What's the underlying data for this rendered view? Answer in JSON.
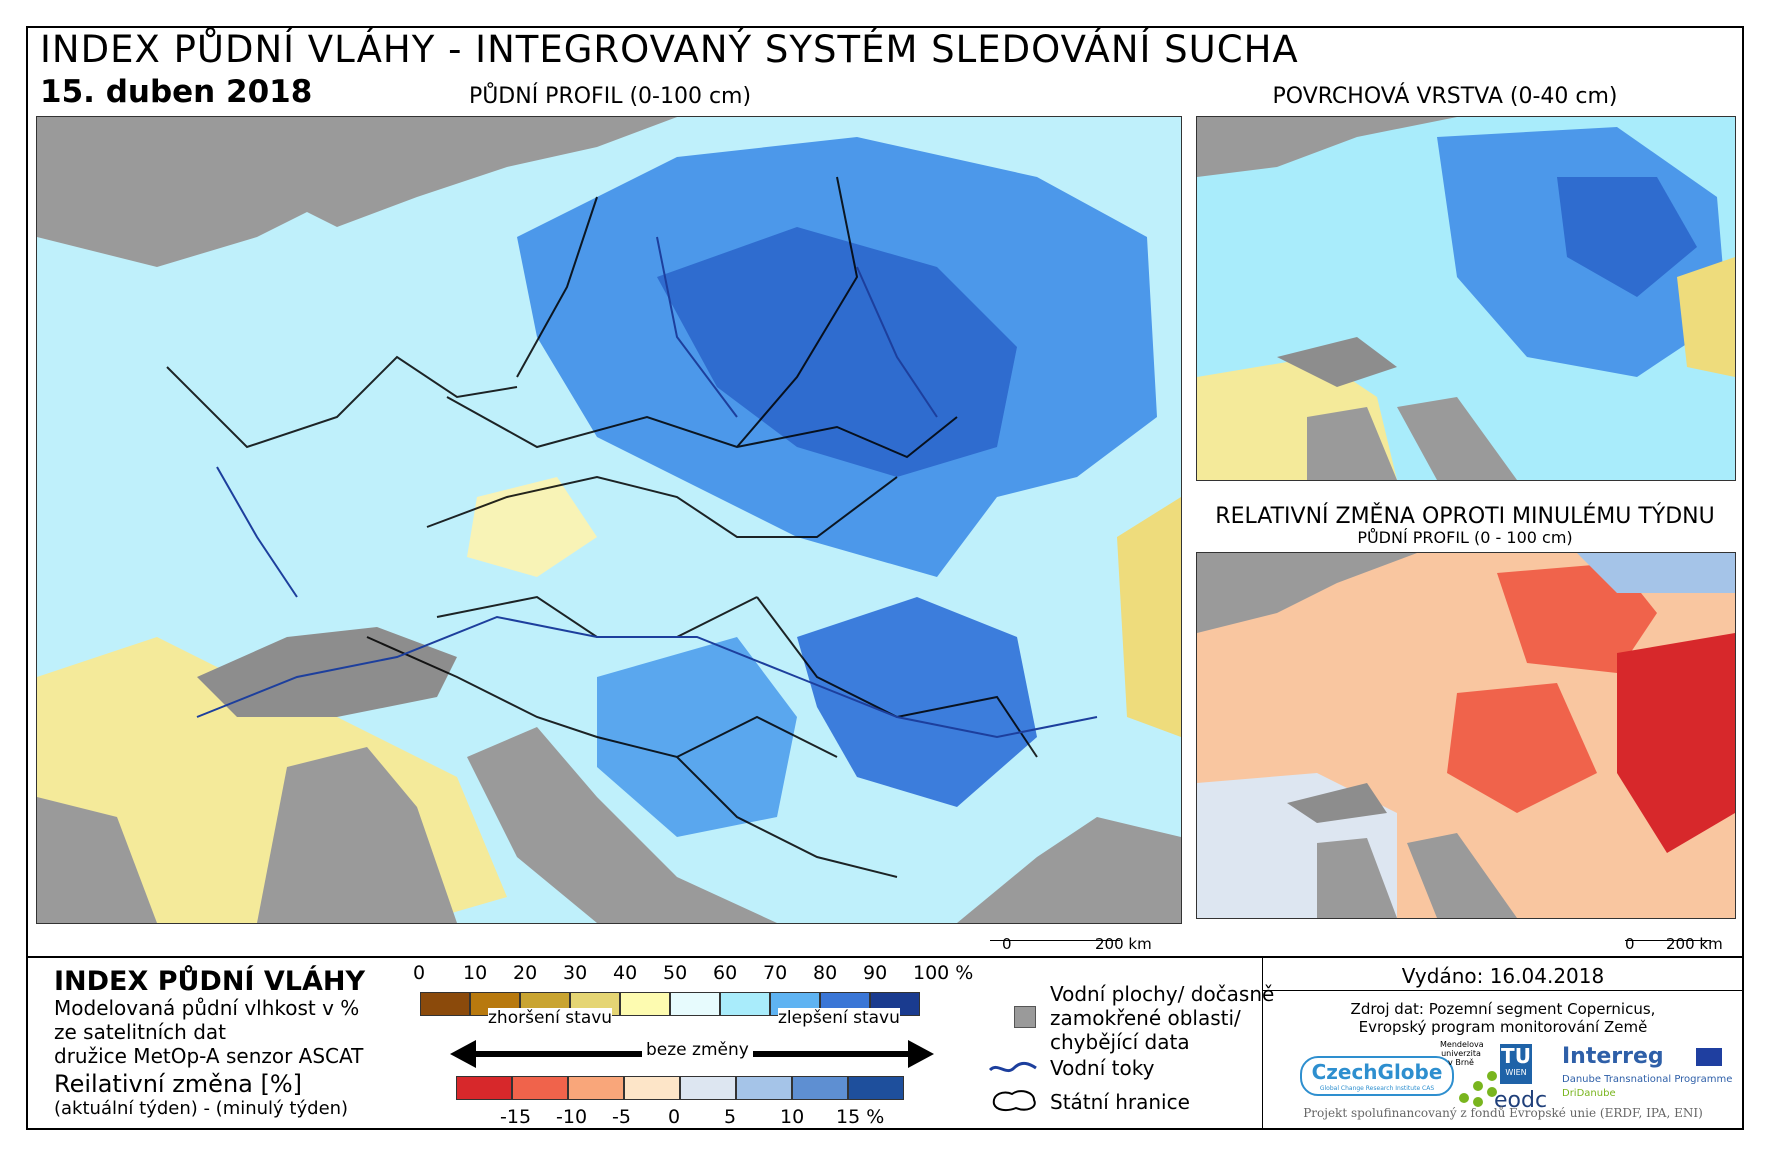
{
  "header": {
    "title": "INDEX PŮDNÍ VLÁHY - INTEGROVANÝ SYSTÉM SLEDOVÁNÍ SUCHA",
    "date": "15. duben 2018"
  },
  "maps": {
    "main_label": "PŮDNÍ PROFIL (0-100 cm)",
    "surface_label": "POVRCHOVÁ VRSTVA (0-40 cm)",
    "change_label": "RELATIVNÍ ZMĚNA OPROTI MINULÉMU TÝDNU",
    "change_sublabel": "PŮDNÍ PROFIL (0 - 100 cm)",
    "scale_zero": "0",
    "scale_km": "200 km"
  },
  "legend": {
    "heading": "INDEX PŮDNÍ VLÁHY",
    "desc_line1": "Modelovaná půdní vlhkost v %",
    "desc_line2": "ze satelitních dat",
    "desc_line3": "družice MetOp-A senzor ASCAT",
    "change_heading": "Reilativní změna [%]",
    "change_desc": "(aktuální týden) - (minulý týden)",
    "index_ticks": [
      "0",
      "10",
      "20",
      "30",
      "40",
      "50",
      "60",
      "70",
      "80",
      "90",
      "100 %"
    ],
    "index_colors": [
      "#8b4a0b",
      "#b8790e",
      "#c9a431",
      "#e5d574",
      "#fdfbb0",
      "#e7fbfd",
      "#a9ecfb",
      "#5fb3f2",
      "#3a76d6",
      "#1a3b8f"
    ],
    "worse": "zhoršení stavu",
    "nochange": "beze změny",
    "better": "zlepšení stavu",
    "change_ticks": [
      "-15",
      "-10",
      "-5",
      "0",
      "5",
      "10",
      "15 %"
    ],
    "change_colors": [
      "#d7282b",
      "#f0634b",
      "#f9a67a",
      "#fde5c8",
      "#dde6f1",
      "#a5c4e8",
      "#5e8fd2",
      "#1e4f9c"
    ],
    "water_bodies": "Vodní plochy/ dočasně",
    "water_bodies2": "zamokřené oblasti/",
    "water_bodies3": "chybějící data",
    "rivers": "Vodní toky",
    "borders": "Státní hranice"
  },
  "info": {
    "issued": "Vydáno: 16.04.2018",
    "source1": "Zdroj dat: Pozemní segment Copernicus,",
    "source2": "Evropský program monitorování Země",
    "logo_czechglobe": "CzechGlobe",
    "logo_czechglobe_sub": "Global Change Research Institute CAS",
    "logo_mendel1": "Mendelova",
    "logo_mendel2": "univerzita",
    "logo_mendel3": "v Brně",
    "logo_tu": "TU",
    "logo_wien": "WIEN",
    "logo_eodc": "eodc",
    "logo_interreg": "Interreg",
    "logo_danube": "Danube Transnational Programme",
    "logo_dridanube": "DriDanube",
    "project": "Projekt spolufinancovaný z fondů Evropské unie (ERDF, IPA, ENI)"
  }
}
